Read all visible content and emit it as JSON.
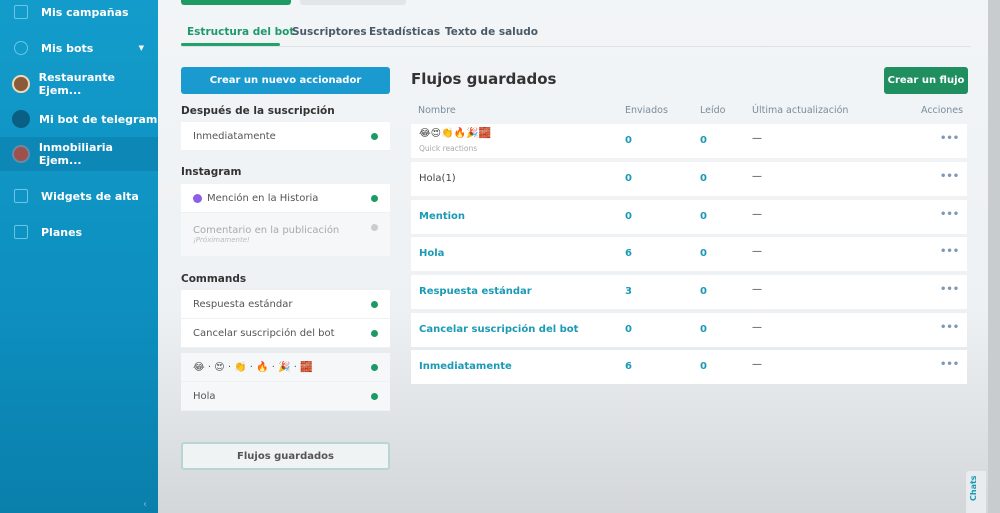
{
  "sidebar": {
    "items": [
      {
        "label": "Mis campañas",
        "icon": "campaign-icon"
      },
      {
        "label": "Mis bots",
        "icon": "bots-icon"
      },
      {
        "label": "Restaurante Ejem...",
        "icon": "avatar"
      },
      {
        "label": "Mi bot de telegram",
        "icon": "telegram-icon"
      },
      {
        "label": "Inmobiliaria Ejem...",
        "icon": "avatar"
      },
      {
        "label": "Widgets de alta",
        "icon": "widget-icon"
      },
      {
        "label": "Planes",
        "icon": "plans-icon"
      }
    ],
    "collapse": "‹"
  },
  "tabs": [
    "Estructura del bot",
    "Suscriptores",
    "Estadísticas",
    "Texto de saludo"
  ],
  "left": {
    "create_trigger": "Crear un nuevo accionador",
    "after_sub": {
      "title": "Después de la suscripción",
      "items": [
        "Inmediatamente"
      ]
    },
    "instagram": {
      "title": "Instagram",
      "items": [
        "Mención en la Historia",
        "Comentario en la publicación"
      ],
      "soon": "¡Próximamente!"
    },
    "commands": {
      "title": "Commands",
      "items": [
        "Respuesta estándar",
        "Cancelar suscripción del bot",
        "😂 · 😍 · 👏 · 🔥 · 🎉 · 🧱",
        "Hola"
      ]
    },
    "saved_flows": "Flujos guardados"
  },
  "flows": {
    "title": "Flujos guardados",
    "create": "Crear un flujo",
    "headers": [
      "Nombre",
      "Enviados",
      "Leído",
      "Última actualización",
      "Acciones"
    ],
    "rows": [
      {
        "name": "😂😍👏🔥🎉🧱",
        "sub": "Quick reactions",
        "sent": "0",
        "read": "0",
        "updated": "—",
        "actions": "•••"
      },
      {
        "name": "Hola(1)",
        "sent": "0",
        "read": "0",
        "updated": "—",
        "actions": "•••"
      },
      {
        "name": "Mention",
        "sent": "0",
        "read": "0",
        "updated": "—",
        "actions": "•••"
      },
      {
        "name": "Hola",
        "sent": "6",
        "read": "0",
        "updated": "—",
        "actions": "•••"
      },
      {
        "name": "Respuesta estándar",
        "sent": "3",
        "read": "0",
        "updated": "—",
        "actions": "•••"
      },
      {
        "name": "Cancelar suscripción del bot",
        "sent": "0",
        "read": "0",
        "updated": "—",
        "actions": "•••"
      },
      {
        "name": "Inmediatamente",
        "sent": "6",
        "read": "0",
        "updated": "—",
        "actions": "•••"
      }
    ]
  },
  "chats": "Chats",
  "colors": {
    "sidebar": "#0d8fbf",
    "accent_green": "#1f8f5f",
    "accent_blue": "#1b9ad0",
    "link": "#1a9ab5"
  }
}
